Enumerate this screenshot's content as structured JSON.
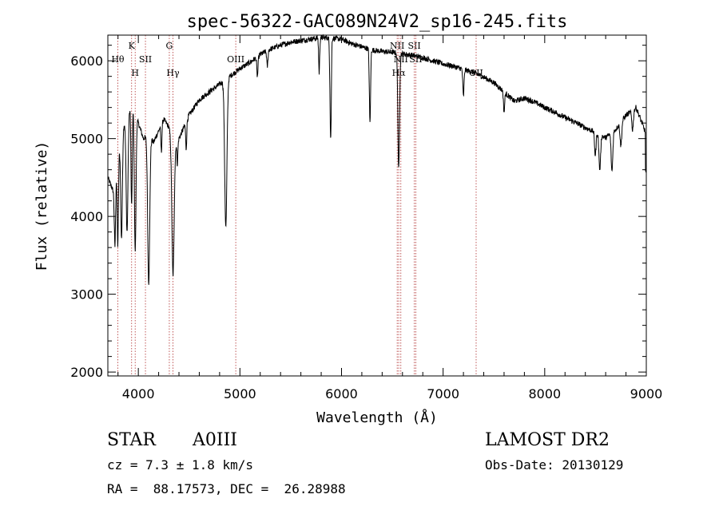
{
  "chart_data": {
    "type": "line",
    "title": "spec-56322-GAC089N24V2_sp16-245.fits",
    "xlabel": "Wavelength (Å)",
    "ylabel": "Flux (relative)",
    "xlim": [
      3700,
      9000
    ],
    "ylim": [
      1950,
      6330
    ],
    "x_ticks": [
      4000,
      5000,
      6000,
      7000,
      8000,
      9000
    ],
    "y_ticks": [
      2000,
      3000,
      4000,
      5000,
      6000
    ],
    "grid": false,
    "continuum": [
      [
        3700,
        4500
      ],
      [
        3760,
        4300
      ],
      [
        3800,
        4750
      ],
      [
        3850,
        5150
      ],
      [
        3900,
        5350
      ],
      [
        3950,
        5450
      ],
      [
        4000,
        5200
      ],
      [
        4050,
        5000
      ],
      [
        4100,
        5050
      ],
      [
        4150,
        4950
      ],
      [
        4200,
        5100
      ],
      [
        4250,
        5250
      ],
      [
        4300,
        5150
      ],
      [
        4350,
        4900
      ],
      [
        4400,
        5000
      ],
      [
        4450,
        5150
      ],
      [
        4500,
        5300
      ],
      [
        4550,
        5400
      ],
      [
        4600,
        5500
      ],
      [
        4650,
        5550
      ],
      [
        4700,
        5600
      ],
      [
        4750,
        5650
      ],
      [
        4800,
        5700
      ],
      [
        4900,
        5800
      ],
      [
        5000,
        5900
      ],
      [
        5100,
        5980
      ],
      [
        5200,
        6080
      ],
      [
        5300,
        6150
      ],
      [
        5400,
        6200
      ],
      [
        5500,
        6240
      ],
      [
        5600,
        6260
      ],
      [
        5700,
        6280
      ],
      [
        5800,
        6300
      ],
      [
        5900,
        6290
      ],
      [
        6000,
        6280
      ],
      [
        6100,
        6220
      ],
      [
        6200,
        6180
      ],
      [
        6300,
        6140
      ],
      [
        6400,
        6120
      ],
      [
        6500,
        6110
      ],
      [
        6600,
        6090
      ],
      [
        6700,
        6070
      ],
      [
        6800,
        6040
      ],
      [
        6900,
        6000
      ],
      [
        7000,
        5960
      ],
      [
        7100,
        5930
      ],
      [
        7200,
        5890
      ],
      [
        7300,
        5850
      ],
      [
        7400,
        5790
      ],
      [
        7500,
        5720
      ],
      [
        7600,
        5600
      ],
      [
        7700,
        5480
      ],
      [
        7800,
        5520
      ],
      [
        7900,
        5470
      ],
      [
        8000,
        5400
      ],
      [
        8100,
        5340
      ],
      [
        8200,
        5270
      ],
      [
        8300,
        5210
      ],
      [
        8400,
        5140
      ],
      [
        8500,
        5080
      ],
      [
        8600,
        5010
      ],
      [
        8700,
        5120
      ],
      [
        8800,
        5300
      ],
      [
        8900,
        5400
      ],
      [
        9000,
        5050
      ]
    ],
    "absorption_lines": [
      [
        3770,
        800,
        6
      ],
      [
        3798,
        1100,
        6
      ],
      [
        3835,
        1300,
        8
      ],
      [
        3889,
        1500,
        9
      ],
      [
        3934,
        1300,
        6
      ],
      [
        3969,
        1800,
        8
      ],
      [
        4102,
        1900,
        10
      ],
      [
        4227,
        350,
        5
      ],
      [
        4341,
        1700,
        11
      ],
      [
        4384,
        300,
        5
      ],
      [
        4471,
        350,
        5
      ],
      [
        4861,
        1900,
        11
      ],
      [
        5172,
        250,
        6
      ],
      [
        5270,
        200,
        6
      ],
      [
        5780,
        450,
        5
      ],
      [
        5890,
        800,
        6
      ],
      [
        5896,
        700,
        5
      ],
      [
        6280,
        950,
        6
      ],
      [
        6563,
        1500,
        8
      ],
      [
        7200,
        350,
        6
      ],
      [
        7600,
        250,
        6
      ],
      [
        8498,
        300,
        7
      ],
      [
        8542,
        450,
        8
      ],
      [
        8662,
        500,
        8
      ],
      [
        8750,
        300,
        8
      ],
      [
        8865,
        250,
        8
      ]
    ],
    "line_markers": [
      {
        "label": "Hθ",
        "x": 3798,
        "row": 1
      },
      {
        "label": "K",
        "x": 3934,
        "row": 0
      },
      {
        "label": "H",
        "x": 3969,
        "row": 2
      },
      {
        "label": "SII",
        "x": 4070,
        "row": 1
      },
      {
        "label": "G",
        "x": 4305,
        "row": 0
      },
      {
        "label": "Hγ",
        "x": 4341,
        "row": 2
      },
      {
        "label": "OIII",
        "x": 4959,
        "row": 1
      },
      {
        "label": "NII",
        "x": 6548,
        "row": 0
      },
      {
        "label": "Hα",
        "x": 6563,
        "row": 2
      },
      {
        "label": "NII",
        "x": 6584,
        "row": 1
      },
      {
        "label": "SII",
        "x": 6717,
        "row": 0
      },
      {
        "label": "SII",
        "x": 6731,
        "row": 1
      },
      {
        "label": "OII",
        "x": 7325,
        "row": 2
      }
    ]
  },
  "info": {
    "class": "STAR",
    "subclass": "A0III",
    "cz": "cz = 7.3 ± 1.8 km/s",
    "coords": "RA =  88.17573, DEC =  26.28988",
    "survey": "LAMOST DR2",
    "obs_date": "Obs-Date: 20130129"
  }
}
